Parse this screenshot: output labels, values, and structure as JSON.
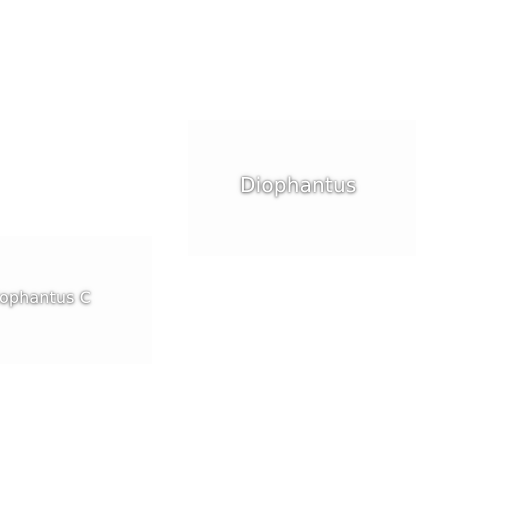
{
  "map": {
    "background_color": "#ffffff",
    "label_color": "#ffffff",
    "labels": [
      {
        "text": "Diophantus"
      },
      {
        "text": "Diophantus C"
      }
    ]
  }
}
